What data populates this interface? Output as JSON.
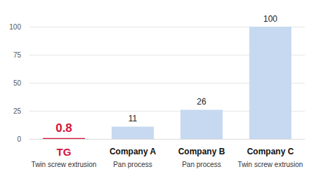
{
  "chart_data": {
    "type": "bar",
    "categories": [
      "TG",
      "Company A",
      "Company B",
      "Company C"
    ],
    "category_notes": [
      "Twin screw extrusion",
      "Pan process",
      "Pan process",
      "Twin screw extrusion"
    ],
    "values": [
      0.8,
      11,
      26,
      100
    ],
    "colors": [
      "#d6113b",
      "#c6d9f0",
      "#c6d9f0",
      "#c6d9f0"
    ],
    "ylim": [
      0,
      100
    ],
    "yticks": [
      0,
      25,
      50,
      75,
      100
    ],
    "grid": true,
    "data_labels": true
  }
}
